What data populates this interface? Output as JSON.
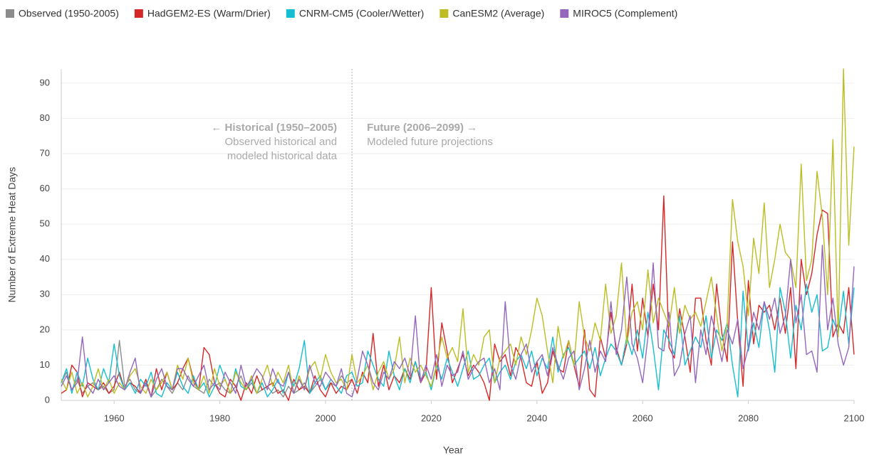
{
  "chart_data": {
    "type": "line",
    "y_label": "Number of Extreme Heat Days",
    "x_label": "Year",
    "annotations": {
      "divider": 2005,
      "historical": [
        "← Historical (1950–2005)",
        "Observed historical and",
        "modeled historical data"
      ],
      "future": [
        "Future (2006–2099) →",
        "Modeled future projections"
      ]
    },
    "xlim": [
      1950,
      2100
    ],
    "xticks": [
      1960,
      1980,
      2000,
      2020,
      2040,
      2060,
      2080,
      2100
    ],
    "ylim": [
      0,
      94
    ],
    "yticks": [
      0,
      10,
      20,
      30,
      40,
      50,
      60,
      70,
      80,
      90
    ],
    "grid": true,
    "legend": "top",
    "x": [
      1950,
      1951,
      1952,
      1953,
      1954,
      1955,
      1956,
      1957,
      1958,
      1959,
      1960,
      1961,
      1962,
      1963,
      1964,
      1965,
      1966,
      1967,
      1968,
      1969,
      1970,
      1971,
      1972,
      1973,
      1974,
      1975,
      1976,
      1977,
      1978,
      1979,
      1980,
      1981,
      1982,
      1983,
      1984,
      1985,
      1986,
      1987,
      1988,
      1989,
      1990,
      1991,
      1992,
      1993,
      1994,
      1995,
      1996,
      1997,
      1998,
      1999,
      2000,
      2001,
      2002,
      2003,
      2004,
      2005,
      2006,
      2007,
      2008,
      2009,
      2010,
      2011,
      2012,
      2013,
      2014,
      2015,
      2016,
      2017,
      2018,
      2019,
      2020,
      2021,
      2022,
      2023,
      2024,
      2025,
      2026,
      2027,
      2028,
      2029,
      2030,
      2031,
      2032,
      2033,
      2034,
      2035,
      2036,
      2037,
      2038,
      2039,
      2040,
      2041,
      2042,
      2043,
      2044,
      2045,
      2046,
      2047,
      2048,
      2049,
      2050,
      2051,
      2052,
      2053,
      2054,
      2055,
      2056,
      2057,
      2058,
      2059,
      2060,
      2061,
      2062,
      2063,
      2064,
      2065,
      2066,
      2067,
      2068,
      2069,
      2070,
      2071,
      2072,
      2073,
      2074,
      2075,
      2076,
      2077,
      2078,
      2079,
      2080,
      2081,
      2082,
      2083,
      2084,
      2085,
      2086,
      2087,
      2088,
      2089,
      2090,
      2091,
      2092,
      2093,
      2094,
      2095,
      2096,
      2097,
      2098,
      2099,
      2100
    ],
    "series": [
      {
        "name": "Observed (1950-2005)",
        "color": "#8c8c8c",
        "values": [
          5,
          8,
          3,
          6,
          2,
          4,
          5,
          3,
          4,
          2,
          3,
          17,
          4,
          6,
          3,
          2,
          5,
          1,
          3,
          6,
          4,
          2,
          5,
          3,
          7,
          4,
          3,
          2,
          6,
          4,
          5,
          3,
          2,
          4,
          7,
          3,
          5,
          2,
          3,
          4,
          2,
          3,
          1,
          4,
          2,
          3,
          5,
          2,
          4,
          6,
          3,
          5,
          4,
          7,
          5,
          6,
          null,
          null,
          null,
          null,
          null,
          null,
          null,
          null,
          null,
          null,
          null,
          null,
          null,
          null,
          null,
          null,
          null,
          null,
          null,
          null,
          null,
          null,
          null,
          null,
          null,
          null,
          null,
          null,
          null,
          null,
          null,
          null,
          null,
          null,
          null,
          null,
          null,
          null,
          null,
          null,
          null,
          null,
          null,
          null,
          null,
          null,
          null,
          null,
          null,
          null,
          null,
          null,
          null,
          null,
          null,
          null,
          null,
          null,
          null,
          null,
          null,
          null,
          null,
          null,
          null,
          null,
          null,
          null,
          null,
          null,
          null,
          null,
          null,
          null,
          null,
          null,
          null,
          null,
          null,
          null,
          null,
          null,
          null,
          null,
          null,
          null,
          null,
          null,
          null,
          null,
          null,
          null,
          null,
          null,
          null
        ]
      },
      {
        "name": "HadGEM2-ES (Warm/Drier)",
        "color": "#d62728",
        "values": [
          2,
          3,
          10,
          8,
          1,
          5,
          4,
          3,
          5,
          2,
          4,
          8,
          3,
          5,
          4,
          2,
          6,
          1,
          9,
          3,
          8,
          3,
          5,
          9,
          12,
          6,
          3,
          15,
          13,
          5,
          2,
          1,
          6,
          4,
          0,
          5,
          2,
          7,
          3,
          4,
          5,
          2,
          3,
          0,
          6,
          3,
          4,
          2,
          7,
          3,
          1,
          5,
          2,
          4,
          3,
          6,
          2,
          8,
          5,
          19,
          4,
          10,
          3,
          7,
          5,
          9,
          6,
          11,
          5,
          8,
          32,
          6,
          22,
          14,
          5,
          9,
          13,
          7,
          10,
          8,
          5,
          0,
          16,
          11,
          13,
          7,
          15,
          12,
          5,
          4,
          11,
          2,
          5,
          14,
          9,
          8,
          17,
          10,
          4,
          20,
          3,
          1,
          18,
          12,
          25,
          15,
          10,
          16,
          33,
          14,
          29,
          18,
          33,
          20,
          58,
          15,
          12,
          26,
          18,
          8,
          29,
          29,
          17,
          10,
          33,
          19,
          11,
          45,
          22,
          4,
          34,
          16,
          27,
          25,
          27,
          20,
          29,
          19,
          32,
          9,
          40,
          30,
          36,
          47,
          54,
          53,
          18,
          22,
          19,
          32,
          13
        ]
      },
      {
        "name": "CNRM-CM5 (Cooler/Wetter)",
        "color": "#17becf",
        "values": [
          5,
          9,
          2,
          8,
          4,
          12,
          6,
          3,
          9,
          5,
          16,
          7,
          3,
          5,
          2,
          6,
          4,
          8,
          2,
          1,
          5,
          3,
          8,
          4,
          2,
          7,
          3,
          5,
          1,
          4,
          10,
          6,
          2,
          9,
          4,
          3,
          6,
          2,
          5,
          1,
          3,
          6,
          2,
          8,
          4,
          9,
          17,
          2,
          5,
          7,
          3,
          6,
          4,
          2,
          7,
          8,
          4,
          5,
          14,
          10,
          6,
          4,
          14,
          7,
          3,
          9,
          5,
          11,
          6,
          8,
          3,
          10,
          6,
          12,
          8,
          4,
          9,
          14,
          6,
          7,
          10,
          12,
          5,
          8,
          10,
          6,
          11,
          13,
          9,
          14,
          7,
          12,
          9,
          18,
          8,
          13,
          15,
          10,
          12,
          14,
          9,
          15,
          7,
          12,
          16,
          14,
          10,
          18,
          13,
          20,
          12,
          25,
          15,
          3,
          20,
          17,
          13,
          24,
          10,
          14,
          18,
          15,
          24,
          12,
          20,
          17,
          22,
          10,
          1,
          31,
          14,
          22,
          15,
          28,
          20,
          8,
          32,
          25,
          12,
          27,
          20,
          33,
          25,
          30,
          14,
          15,
          23,
          19,
          31,
          16,
          32
        ]
      },
      {
        "name": "CanESM2 (Average)",
        "color": "#bcbd22",
        "values": [
          6,
          3,
          8,
          2,
          5,
          1,
          4,
          9,
          3,
          6,
          2,
          5,
          3,
          7,
          9,
          4,
          2,
          6,
          3,
          5,
          8,
          3,
          10,
          6,
          12,
          5,
          3,
          7,
          2,
          9,
          4,
          6,
          2,
          8,
          5,
          3,
          7,
          2,
          6,
          10,
          4,
          8,
          5,
          10,
          2,
          7,
          3,
          9,
          11,
          6,
          13,
          8,
          5,
          6,
          3,
          13,
          5,
          7,
          10,
          3,
          8,
          11,
          6,
          9,
          18,
          5,
          12,
          8,
          10,
          7,
          4,
          10,
          18,
          12,
          15,
          11,
          26,
          8,
          13,
          10,
          18,
          20,
          5,
          12,
          14,
          16,
          10,
          18,
          13,
          20,
          29,
          24,
          14,
          5,
          21,
          12,
          17,
          10,
          28,
          18,
          14,
          22,
          17,
          33,
          19,
          24,
          39,
          16,
          25,
          28,
          20,
          37,
          22,
          29,
          25,
          21,
          32,
          19,
          27,
          23,
          25,
          21,
          28,
          35,
          24,
          14,
          22,
          57,
          45,
          38,
          24,
          46,
          36,
          56,
          32,
          40,
          50,
          42,
          40,
          32,
          67,
          34,
          40,
          65,
          52,
          30,
          74,
          18,
          94,
          44,
          72
        ]
      },
      {
        "name": "MIROC5 (Complement)",
        "color": "#9467bd",
        "values": [
          4,
          7,
          3,
          5,
          18,
          4,
          2,
          6,
          3,
          5,
          7,
          4,
          3,
          8,
          12,
          2,
          5,
          1,
          6,
          9,
          4,
          3,
          9,
          9,
          6,
          4,
          7,
          10,
          3,
          5,
          3,
          8,
          5,
          2,
          10,
          4,
          6,
          9,
          7,
          3,
          9,
          5,
          4,
          8,
          2,
          6,
          3,
          10,
          5,
          4,
          8,
          6,
          4,
          9,
          2,
          1,
          6,
          14,
          10,
          5,
          3,
          8,
          6,
          11,
          9,
          12,
          7,
          24,
          5,
          10,
          6,
          13,
          4,
          10,
          7,
          8,
          14,
          6,
          9,
          11,
          12,
          5,
          9,
          3,
          28,
          10,
          6,
          13,
          16,
          8,
          11,
          13,
          7,
          15,
          10,
          6,
          12,
          14,
          3,
          9,
          17,
          8,
          14,
          11,
          28,
          13,
          20,
          35,
          16,
          12,
          5,
          18,
          39,
          15,
          14,
          25,
          7,
          10,
          19,
          24,
          5,
          20,
          13,
          24,
          18,
          11,
          20,
          16,
          23,
          9,
          15,
          25,
          20,
          28,
          23,
          29,
          19,
          24,
          40,
          22,
          30,
          13,
          14,
          8,
          44,
          20,
          29,
          16,
          10,
          15,
          38
        ]
      }
    ]
  }
}
